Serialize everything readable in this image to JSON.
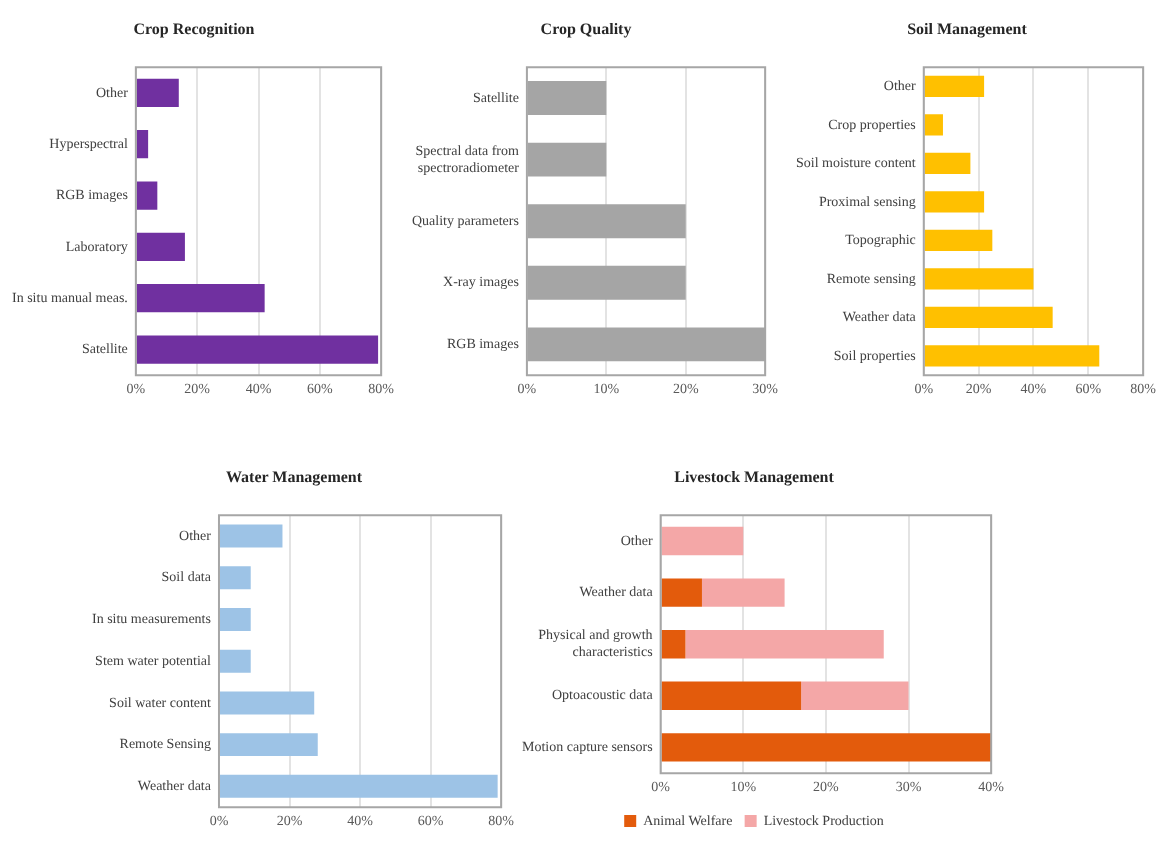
{
  "chart_data": [
    {
      "type": "bar",
      "title": "Crop Recognition",
      "orientation": "horizontal",
      "categories": [
        "Other",
        "Hyperspectral",
        "RGB images",
        "Laboratory",
        "In situ manual meas.",
        "Satellite"
      ],
      "color": "#7030a0",
      "values": [
        14,
        4,
        7,
        16,
        42,
        79
      ],
      "xlim": [
        0,
        80
      ],
      "xticks": [
        {
          "value": 0,
          "label": "0%"
        },
        {
          "value": 20,
          "label": "20%"
        },
        {
          "value": 40,
          "label": "40%"
        },
        {
          "value": 60,
          "label": "60%"
        },
        {
          "value": 80,
          "label": "80%"
        }
      ],
      "grid": "x",
      "legend": false
    },
    {
      "type": "bar",
      "title": "Crop Quality",
      "orientation": "horizontal",
      "categories": [
        "Satellite",
        "Spectral data from spectroradiometer",
        "Quality parameters",
        "X-ray images",
        "RGB images"
      ],
      "color": "#a5a5a5",
      "values": [
        10,
        10,
        20,
        20,
        30
      ],
      "xlim": [
        0,
        30
      ],
      "xticks": [
        {
          "value": 0,
          "label": "0%"
        },
        {
          "value": 10,
          "label": "10%"
        },
        {
          "value": 20,
          "label": "20%"
        },
        {
          "value": 30,
          "label": "30%"
        }
      ],
      "grid": "x",
      "legend": false
    },
    {
      "type": "bar",
      "title": "Soil Management",
      "orientation": "horizontal",
      "categories": [
        "Other",
        "Crop properties",
        "Soil moisture content",
        "Proximal sensing",
        "Topographic",
        "Remote sensing",
        "Weather data",
        "Soil properties"
      ],
      "color": "#ffc000",
      "values": [
        22,
        7,
        17,
        22,
        25,
        40,
        47,
        64
      ],
      "xlim": [
        0,
        80
      ],
      "xticks": [
        {
          "value": 0,
          "label": "0%"
        },
        {
          "value": 20,
          "label": "20%"
        },
        {
          "value": 40,
          "label": "40%"
        },
        {
          "value": 60,
          "label": "60%"
        },
        {
          "value": 80,
          "label": "80%"
        }
      ],
      "grid": "x",
      "legend": false
    },
    {
      "type": "bar",
      "title": "Water Management",
      "orientation": "horizontal",
      "categories": [
        "Other",
        "Soil data",
        "In situ measurements",
        "Stem water potential",
        "Soil water content",
        "Remote Sensing",
        "Weather data"
      ],
      "color": "#9dc3e6",
      "values": [
        18,
        9,
        9,
        9,
        27,
        28,
        79
      ],
      "xlim": [
        0,
        80
      ],
      "xticks": [
        {
          "value": 0,
          "label": "0%"
        },
        {
          "value": 20,
          "label": "20%"
        },
        {
          "value": 40,
          "label": "40%"
        },
        {
          "value": 60,
          "label": "60%"
        },
        {
          "value": 80,
          "label": "80%"
        }
      ],
      "grid": "x",
      "legend": false
    },
    {
      "type": "bar",
      "title": "Livestock Management",
      "orientation": "horizontal",
      "stacked": true,
      "categories": [
        "Other",
        "Weather data",
        "Physical and growth characteristics",
        "Optoacoustic data",
        "Motion capture sensors"
      ],
      "series": [
        {
          "name": "Animal Welfare",
          "color": "#e35b0c",
          "values": [
            0,
            5,
            3,
            17,
            40
          ]
        },
        {
          "name": "Livestock Production",
          "color": "#f4a7a7",
          "values": [
            10,
            10,
            24,
            13,
            0
          ]
        }
      ],
      "xlim": [
        0,
        40
      ],
      "xticks": [
        {
          "value": 0,
          "label": "0%"
        },
        {
          "value": 10,
          "label": "10%"
        },
        {
          "value": 20,
          "label": "20%"
        },
        {
          "value": 30,
          "label": "30%"
        },
        {
          "value": 40,
          "label": "40%"
        }
      ],
      "grid": "x",
      "legend": "bottom"
    }
  ]
}
